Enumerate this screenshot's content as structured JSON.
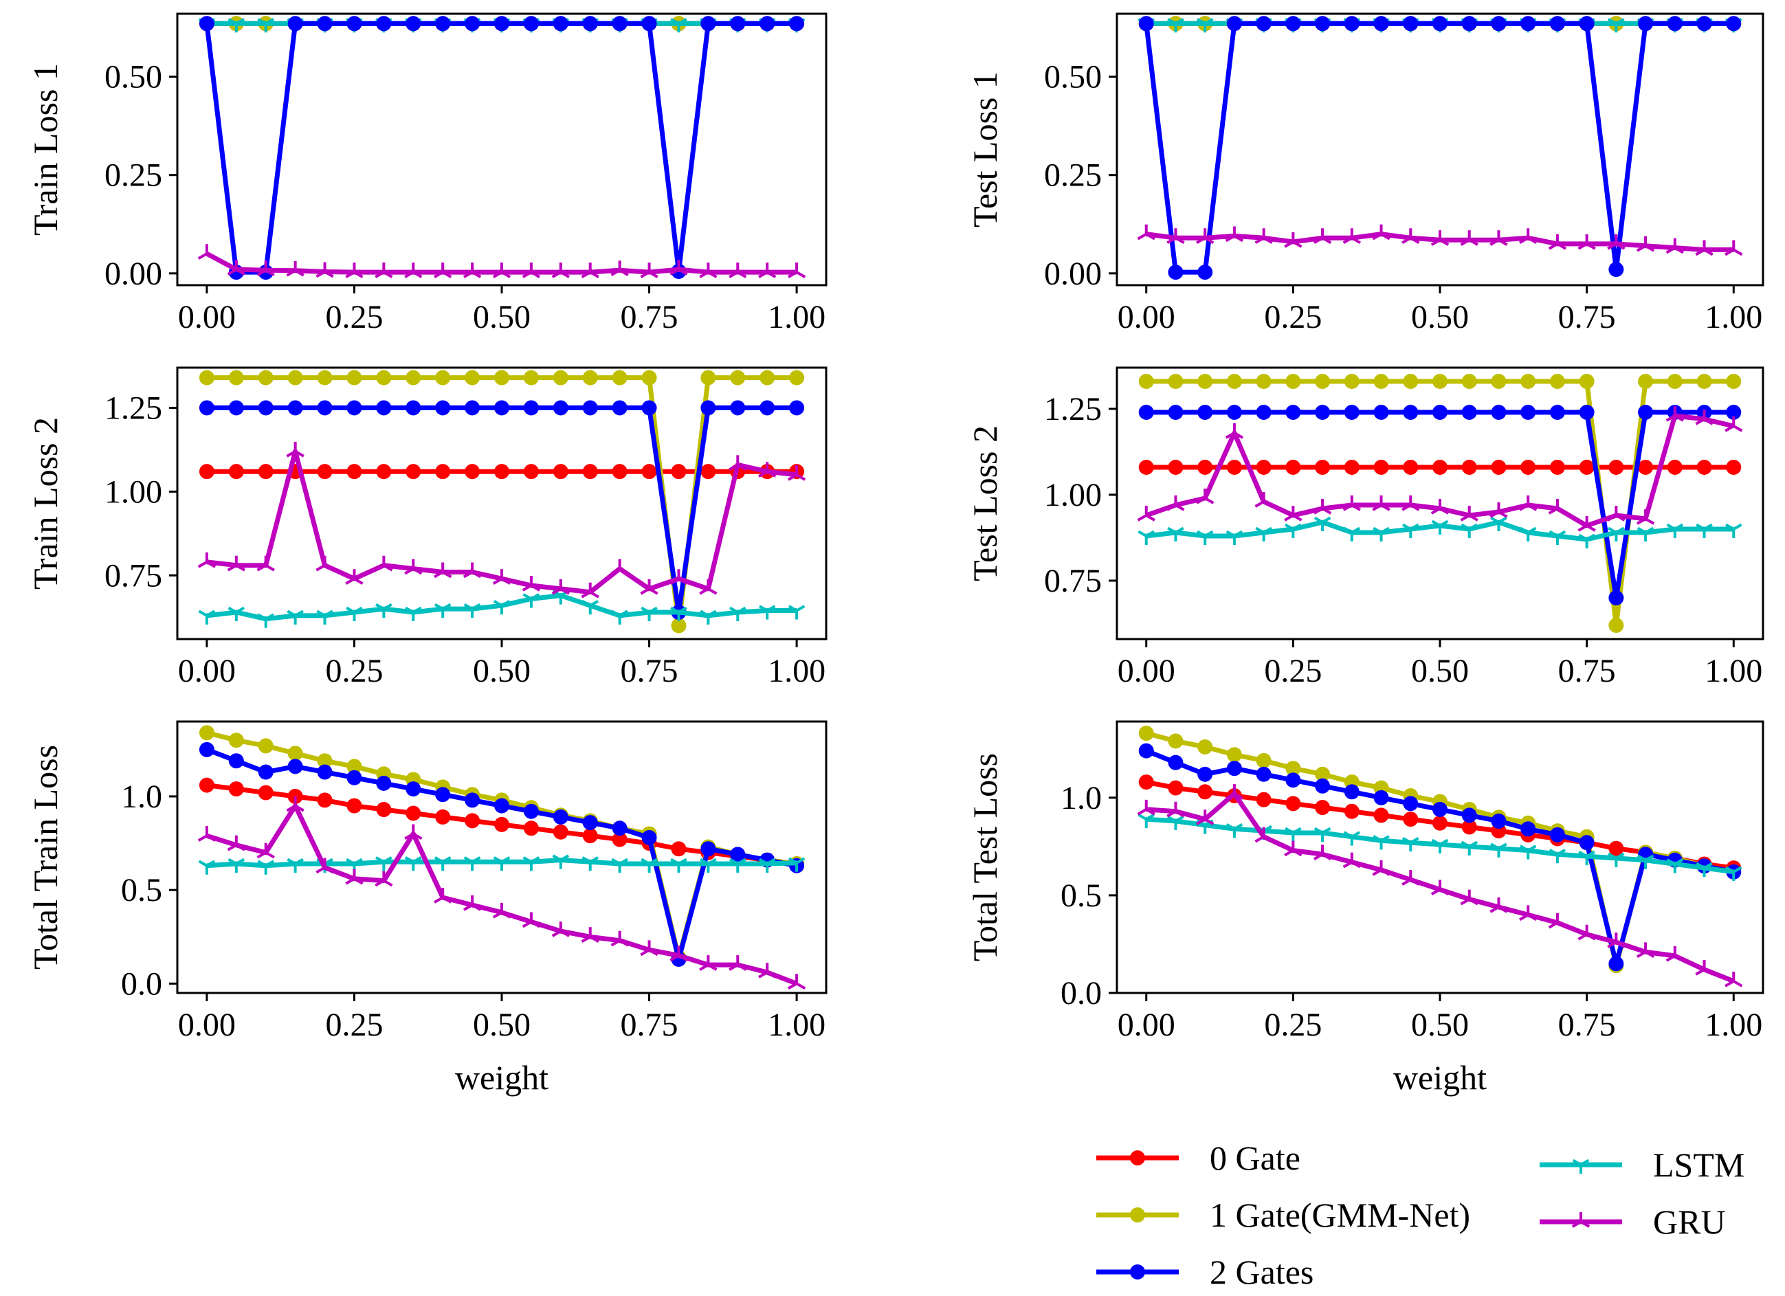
{
  "chart_data": [
    {
      "type": "line",
      "xlabel": "",
      "ylabel": "Train Loss 1",
      "xlim": [
        -0.05,
        1.05
      ],
      "ylim": [
        -0.03,
        0.66
      ],
      "xticks": [
        "0.00",
        "0.25",
        "0.50",
        "0.75",
        "1.00"
      ],
      "xtick_values": [
        0,
        0.25,
        0.5,
        0.75,
        1
      ],
      "yticks": [
        "0.00",
        "0.25",
        "0.50"
      ],
      "ytick_values": [
        0,
        0.25,
        0.5
      ],
      "x": [
        0.0,
        0.05,
        0.1,
        0.15,
        0.2,
        0.25,
        0.3,
        0.35,
        0.4,
        0.45,
        0.5,
        0.55,
        0.6,
        0.65,
        0.7,
        0.75,
        0.8,
        0.85,
        0.9,
        0.95,
        1.0
      ],
      "series": [
        {
          "name": "0 Gate",
          "values": [
            0.635,
            0.635,
            0.635,
            0.635,
            0.635,
            0.635,
            0.635,
            0.635,
            0.635,
            0.635,
            0.635,
            0.635,
            0.635,
            0.635,
            0.635,
            0.635,
            0.635,
            0.635,
            0.635,
            0.635,
            0.635
          ]
        },
        {
          "name": "1 Gate(GMM-Net)",
          "values": [
            0.635,
            0.635,
            0.635,
            0.635,
            0.635,
            0.635,
            0.635,
            0.635,
            0.635,
            0.635,
            0.635,
            0.635,
            0.635,
            0.635,
            0.635,
            0.635,
            0.635,
            0.635,
            0.635,
            0.635,
            0.635
          ]
        },
        {
          "name": "LSTM",
          "values": [
            0.635,
            0.635,
            0.635,
            0.635,
            0.635,
            0.635,
            0.635,
            0.635,
            0.635,
            0.635,
            0.635,
            0.635,
            0.635,
            0.635,
            0.635,
            0.635,
            0.635,
            0.635,
            0.635,
            0.635,
            0.635
          ]
        },
        {
          "name": "2 Gates",
          "values": [
            0.635,
            0.003,
            0.003,
            0.635,
            0.635,
            0.635,
            0.635,
            0.635,
            0.635,
            0.635,
            0.635,
            0.635,
            0.635,
            0.635,
            0.635,
            0.635,
            0.005,
            0.635,
            0.635,
            0.635,
            0.635
          ]
        },
        {
          "name": "GRU",
          "values": [
            0.05,
            0.01,
            0.008,
            0.007,
            0.004,
            0.003,
            0.003,
            0.003,
            0.003,
            0.003,
            0.003,
            0.003,
            0.003,
            0.003,
            0.008,
            0.003,
            0.01,
            0.003,
            0.003,
            0.003,
            0.003
          ]
        }
      ]
    },
    {
      "type": "line",
      "xlabel": "",
      "ylabel": "Test Loss 1",
      "xlim": [
        -0.05,
        1.05
      ],
      "ylim": [
        -0.03,
        0.66
      ],
      "xticks": [
        "0.00",
        "0.25",
        "0.50",
        "0.75",
        "1.00"
      ],
      "xtick_values": [
        0,
        0.25,
        0.5,
        0.75,
        1
      ],
      "yticks": [
        "0.00",
        "0.25",
        "0.50"
      ],
      "ytick_values": [
        0,
        0.25,
        0.5
      ],
      "x": [
        0.0,
        0.05,
        0.1,
        0.15,
        0.2,
        0.25,
        0.3,
        0.35,
        0.4,
        0.45,
        0.5,
        0.55,
        0.6,
        0.65,
        0.7,
        0.75,
        0.8,
        0.85,
        0.9,
        0.95,
        1.0
      ],
      "series": [
        {
          "name": "0 Gate",
          "values": [
            0.635,
            0.635,
            0.635,
            0.635,
            0.635,
            0.635,
            0.635,
            0.635,
            0.635,
            0.635,
            0.635,
            0.635,
            0.635,
            0.635,
            0.635,
            0.635,
            0.635,
            0.635,
            0.635,
            0.635,
            0.635
          ]
        },
        {
          "name": "1 Gate(GMM-Net)",
          "values": [
            0.635,
            0.635,
            0.635,
            0.635,
            0.635,
            0.635,
            0.635,
            0.635,
            0.635,
            0.635,
            0.635,
            0.635,
            0.635,
            0.635,
            0.635,
            0.635,
            0.635,
            0.635,
            0.635,
            0.635,
            0.635
          ]
        },
        {
          "name": "LSTM",
          "values": [
            0.635,
            0.635,
            0.635,
            0.635,
            0.635,
            0.635,
            0.635,
            0.635,
            0.635,
            0.635,
            0.635,
            0.635,
            0.635,
            0.635,
            0.635,
            0.635,
            0.635,
            0.635,
            0.635,
            0.635,
            0.635
          ]
        },
        {
          "name": "2 Gates",
          "values": [
            0.635,
            0.003,
            0.003,
            0.635,
            0.635,
            0.635,
            0.635,
            0.635,
            0.635,
            0.635,
            0.635,
            0.635,
            0.635,
            0.635,
            0.635,
            0.635,
            0.01,
            0.635,
            0.635,
            0.635,
            0.635
          ]
        },
        {
          "name": "GRU",
          "values": [
            0.1,
            0.09,
            0.09,
            0.095,
            0.09,
            0.08,
            0.09,
            0.09,
            0.1,
            0.09,
            0.085,
            0.085,
            0.085,
            0.09,
            0.075,
            0.075,
            0.075,
            0.07,
            0.065,
            0.06,
            0.06
          ]
        }
      ]
    },
    {
      "type": "line",
      "xlabel": "",
      "ylabel": "Train Loss 2",
      "xlim": [
        -0.05,
        1.05
      ],
      "ylim": [
        0.56,
        1.37
      ],
      "xticks": [
        "0.00",
        "0.25",
        "0.50",
        "0.75",
        "1.00"
      ],
      "xtick_values": [
        0,
        0.25,
        0.5,
        0.75,
        1
      ],
      "yticks": [
        "0.75",
        "1.00",
        "1.25"
      ],
      "ytick_values": [
        0.75,
        1.0,
        1.25
      ],
      "x": [
        0.0,
        0.05,
        0.1,
        0.15,
        0.2,
        0.25,
        0.3,
        0.35,
        0.4,
        0.45,
        0.5,
        0.55,
        0.6,
        0.65,
        0.7,
        0.75,
        0.8,
        0.85,
        0.9,
        0.95,
        1.0
      ],
      "series": [
        {
          "name": "0 Gate",
          "values": [
            1.06,
            1.06,
            1.06,
            1.06,
            1.06,
            1.06,
            1.06,
            1.06,
            1.06,
            1.06,
            1.06,
            1.06,
            1.06,
            1.06,
            1.06,
            1.06,
            1.06,
            1.06,
            1.06,
            1.06,
            1.06
          ]
        },
        {
          "name": "1 Gate(GMM-Net)",
          "values": [
            1.34,
            1.34,
            1.34,
            1.34,
            1.34,
            1.34,
            1.34,
            1.34,
            1.34,
            1.34,
            1.34,
            1.34,
            1.34,
            1.34,
            1.34,
            1.34,
            0.6,
            1.34,
            1.34,
            1.34,
            1.34
          ]
        },
        {
          "name": "2 Gates",
          "values": [
            1.25,
            1.25,
            1.25,
            1.25,
            1.25,
            1.25,
            1.25,
            1.25,
            1.25,
            1.25,
            1.25,
            1.25,
            1.25,
            1.25,
            1.25,
            1.25,
            0.64,
            1.25,
            1.25,
            1.25,
            1.25
          ]
        },
        {
          "name": "LSTM",
          "values": [
            0.63,
            0.64,
            0.62,
            0.63,
            0.63,
            0.64,
            0.65,
            0.64,
            0.65,
            0.65,
            0.66,
            0.68,
            0.69,
            0.66,
            0.63,
            0.64,
            0.64,
            0.63,
            0.64,
            0.645,
            0.645
          ]
        },
        {
          "name": "GRU",
          "values": [
            0.79,
            0.78,
            0.78,
            1.12,
            0.78,
            0.74,
            0.78,
            0.77,
            0.76,
            0.76,
            0.74,
            0.72,
            0.71,
            0.7,
            0.77,
            0.71,
            0.74,
            0.71,
            1.08,
            1.06,
            1.05
          ]
        }
      ]
    },
    {
      "type": "line",
      "xlabel": "",
      "ylabel": "Test Loss 2",
      "xlim": [
        -0.05,
        1.05
      ],
      "ylim": [
        0.58,
        1.37
      ],
      "xticks": [
        "0.00",
        "0.25",
        "0.50",
        "0.75",
        "1.00"
      ],
      "xtick_values": [
        0,
        0.25,
        0.5,
        0.75,
        1
      ],
      "yticks": [
        "0.75",
        "1.00",
        "1.25"
      ],
      "ytick_values": [
        0.75,
        1.0,
        1.25
      ],
      "x": [
        0.0,
        0.05,
        0.1,
        0.15,
        0.2,
        0.25,
        0.3,
        0.35,
        0.4,
        0.45,
        0.5,
        0.55,
        0.6,
        0.65,
        0.7,
        0.75,
        0.8,
        0.85,
        0.9,
        0.95,
        1.0
      ],
      "series": [
        {
          "name": "0 Gate",
          "values": [
            1.08,
            1.08,
            1.08,
            1.08,
            1.08,
            1.08,
            1.08,
            1.08,
            1.08,
            1.08,
            1.08,
            1.08,
            1.08,
            1.08,
            1.08,
            1.08,
            1.08,
            1.08,
            1.08,
            1.08,
            1.08
          ]
        },
        {
          "name": "1 Gate(GMM-Net)",
          "values": [
            1.33,
            1.33,
            1.33,
            1.33,
            1.33,
            1.33,
            1.33,
            1.33,
            1.33,
            1.33,
            1.33,
            1.33,
            1.33,
            1.33,
            1.33,
            1.33,
            0.62,
            1.33,
            1.33,
            1.33,
            1.33
          ]
        },
        {
          "name": "2 Gates",
          "values": [
            1.24,
            1.24,
            1.24,
            1.24,
            1.24,
            1.24,
            1.24,
            1.24,
            1.24,
            1.24,
            1.24,
            1.24,
            1.24,
            1.24,
            1.24,
            1.24,
            0.7,
            1.24,
            1.24,
            1.24,
            1.24
          ]
        },
        {
          "name": "LSTM",
          "values": [
            0.88,
            0.89,
            0.88,
            0.88,
            0.89,
            0.9,
            0.92,
            0.89,
            0.89,
            0.9,
            0.91,
            0.9,
            0.92,
            0.89,
            0.88,
            0.87,
            0.89,
            0.89,
            0.9,
            0.9,
            0.9
          ]
        },
        {
          "name": "GRU",
          "values": [
            0.94,
            0.97,
            0.99,
            1.18,
            0.98,
            0.94,
            0.96,
            0.97,
            0.97,
            0.97,
            0.96,
            0.94,
            0.95,
            0.97,
            0.96,
            0.91,
            0.94,
            0.93,
            1.23,
            1.22,
            1.2
          ]
        }
      ]
    },
    {
      "type": "line",
      "xlabel": "weight",
      "ylabel": "Total Train Loss",
      "xlim": [
        -0.05,
        1.05
      ],
      "ylim": [
        -0.05,
        1.4
      ],
      "xticks": [
        "0.00",
        "0.25",
        "0.50",
        "0.75",
        "1.00"
      ],
      "xtick_values": [
        0,
        0.25,
        0.5,
        0.75,
        1
      ],
      "yticks": [
        "0.0",
        "0.5",
        "1.0"
      ],
      "ytick_values": [
        0,
        0.5,
        1.0
      ],
      "x": [
        0.0,
        0.05,
        0.1,
        0.15,
        0.2,
        0.25,
        0.3,
        0.35,
        0.4,
        0.45,
        0.5,
        0.55,
        0.6,
        0.65,
        0.7,
        0.75,
        0.8,
        0.85,
        0.9,
        0.95,
        1.0
      ],
      "series": [
        {
          "name": "0 Gate",
          "values": [
            1.06,
            1.04,
            1.02,
            1.0,
            0.98,
            0.95,
            0.93,
            0.91,
            0.89,
            0.87,
            0.85,
            0.83,
            0.81,
            0.79,
            0.77,
            0.75,
            0.72,
            0.7,
            0.68,
            0.66,
            0.64
          ]
        },
        {
          "name": "1 Gate(GMM-Net)",
          "values": [
            1.34,
            1.3,
            1.27,
            1.23,
            1.19,
            1.16,
            1.12,
            1.09,
            1.05,
            1.01,
            0.98,
            0.94,
            0.9,
            0.87,
            0.83,
            0.8,
            0.14,
            0.73,
            0.69,
            0.66,
            0.64
          ]
        },
        {
          "name": "2 Gates",
          "values": [
            1.25,
            1.19,
            1.13,
            1.16,
            1.13,
            1.1,
            1.07,
            1.04,
            1.01,
            0.98,
            0.95,
            0.92,
            0.89,
            0.86,
            0.83,
            0.78,
            0.13,
            0.72,
            0.69,
            0.66,
            0.63
          ]
        },
        {
          "name": "LSTM",
          "values": [
            0.63,
            0.64,
            0.63,
            0.64,
            0.64,
            0.64,
            0.65,
            0.65,
            0.65,
            0.65,
            0.65,
            0.65,
            0.66,
            0.65,
            0.64,
            0.64,
            0.64,
            0.64,
            0.64,
            0.64,
            0.645
          ]
        },
        {
          "name": "GRU",
          "values": [
            0.79,
            0.74,
            0.7,
            0.95,
            0.62,
            0.56,
            0.55,
            0.8,
            0.46,
            0.42,
            0.38,
            0.33,
            0.28,
            0.25,
            0.23,
            0.18,
            0.15,
            0.1,
            0.1,
            0.06,
            0.0
          ]
        }
      ]
    },
    {
      "type": "line",
      "xlabel": "weight",
      "ylabel": "Total Test Loss",
      "xlim": [
        -0.05,
        1.05
      ],
      "ylim": [
        0.0,
        1.39
      ],
      "xticks": [
        "0.00",
        "0.25",
        "0.50",
        "0.75",
        "1.00"
      ],
      "xtick_values": [
        0,
        0.25,
        0.5,
        0.75,
        1
      ],
      "yticks": [
        "0.0",
        "0.5",
        "1.0"
      ],
      "ytick_values": [
        0,
        0.5,
        1.0
      ],
      "x": [
        0.0,
        0.05,
        0.1,
        0.15,
        0.2,
        0.25,
        0.3,
        0.35,
        0.4,
        0.45,
        0.5,
        0.55,
        0.6,
        0.65,
        0.7,
        0.75,
        0.8,
        0.85,
        0.9,
        0.95,
        1.0
      ],
      "series": [
        {
          "name": "0 Gate",
          "values": [
            1.08,
            1.05,
            1.03,
            1.01,
            0.99,
            0.97,
            0.95,
            0.93,
            0.91,
            0.89,
            0.87,
            0.85,
            0.83,
            0.81,
            0.79,
            0.77,
            0.74,
            0.72,
            0.69,
            0.66,
            0.64
          ]
        },
        {
          "name": "1 Gate(GMM-Net)",
          "values": [
            1.33,
            1.29,
            1.26,
            1.22,
            1.19,
            1.15,
            1.12,
            1.08,
            1.05,
            1.01,
            0.98,
            0.94,
            0.9,
            0.87,
            0.83,
            0.8,
            0.14,
            0.72,
            0.69,
            0.65,
            0.62
          ]
        },
        {
          "name": "2 Gates",
          "values": [
            1.24,
            1.18,
            1.12,
            1.15,
            1.12,
            1.09,
            1.06,
            1.03,
            1.0,
            0.97,
            0.94,
            0.91,
            0.88,
            0.84,
            0.81,
            0.77,
            0.15,
            0.71,
            0.68,
            0.65,
            0.62
          ]
        },
        {
          "name": "LSTM",
          "values": [
            0.89,
            0.88,
            0.86,
            0.84,
            0.83,
            0.82,
            0.82,
            0.8,
            0.78,
            0.77,
            0.76,
            0.75,
            0.74,
            0.73,
            0.71,
            0.7,
            0.69,
            0.68,
            0.66,
            0.64,
            0.62
          ]
        },
        {
          "name": "GRU",
          "values": [
            0.94,
            0.93,
            0.89,
            1.02,
            0.8,
            0.73,
            0.71,
            0.67,
            0.63,
            0.58,
            0.53,
            0.48,
            0.44,
            0.4,
            0.36,
            0.3,
            0.26,
            0.21,
            0.19,
            0.12,
            0.06
          ]
        }
      ]
    }
  ],
  "legend": {
    "placement": "bottom-right",
    "entries": [
      {
        "name": "0 Gate",
        "color": "#ff0000",
        "marker": "circle"
      },
      {
        "name": "1 Gate(GMM-Net)",
        "color": "#bfbf00",
        "marker": "circle"
      },
      {
        "name": "2 Gates",
        "color": "#0000ff",
        "marker": "circle"
      },
      {
        "name": "LSTM",
        "color": "#00bfbf",
        "marker": "tri-down"
      },
      {
        "name": "GRU",
        "color": "#bf00bf",
        "marker": "x-tri"
      }
    ]
  },
  "colors": {
    "0 Gate": "#ff0000",
    "1 Gate(GMM-Net)": "#bfbf00",
    "2 Gates": "#0000ff",
    "LSTM": "#00bfbf",
    "GRU": "#bf00bf"
  }
}
